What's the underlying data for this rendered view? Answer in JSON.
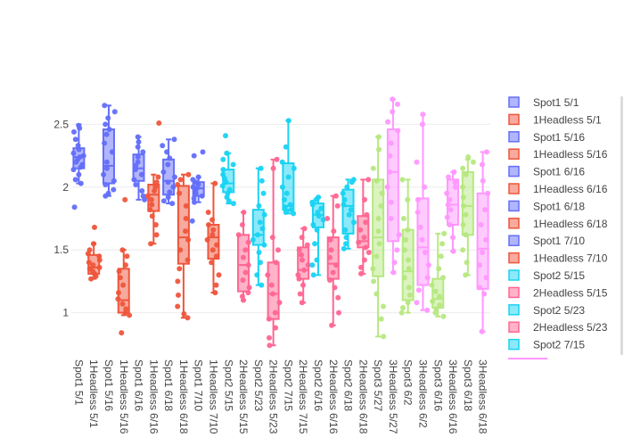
{
  "chart_data": {
    "type": "box",
    "y_ticks": [
      1,
      1.5,
      2,
      2.5
    ],
    "y_range": [
      0.72,
      2.78
    ],
    "y_tick_labels": [
      "1",
      "1.5",
      "2",
      "2.5"
    ],
    "grid": true,
    "legend_position": "right",
    "series": [
      {
        "name": "Spot1 5/1",
        "color": "#636efa",
        "q1": 2.15,
        "median": 2.24,
        "q3": 2.31,
        "min": 2.03,
        "max": 2.5,
        "points": [
          2.49,
          2.47,
          2.44,
          2.38,
          2.33,
          2.3,
          2.27,
          2.25,
          2.24,
          2.22,
          2.2,
          2.18,
          2.16,
          2.14,
          2.1,
          2.06,
          2.03,
          1.84
        ]
      },
      {
        "name": "1Headless 5/1",
        "color": "#ef553b",
        "q1": 1.31,
        "median": 1.36,
        "q3": 1.46,
        "min": 1.27,
        "max": 1.55,
        "points": [
          1.68,
          1.55,
          1.5,
          1.47,
          1.45,
          1.42,
          1.4,
          1.38,
          1.36,
          1.35,
          1.33,
          1.31,
          1.29,
          1.27
        ]
      },
      {
        "name": "Spot1 5/16",
        "color": "#636efa",
        "q1": 2.03,
        "median": 2.17,
        "q3": 2.46,
        "min": 1.93,
        "max": 2.65,
        "points": [
          2.65,
          2.6,
          2.55,
          2.5,
          2.46,
          2.42,
          2.35,
          2.28,
          2.2,
          2.15,
          2.1,
          2.05,
          2.02,
          1.98,
          1.95,
          1.93
        ]
      },
      {
        "name": "1Headless 5/16",
        "color": "#ef553b",
        "q1": 1.0,
        "median": 1.1,
        "q3": 1.35,
        "min": 0.98,
        "max": 1.5,
        "points": [
          1.9,
          1.5,
          1.45,
          1.38,
          1.33,
          1.28,
          1.22,
          1.16,
          1.11,
          1.07,
          1.03,
          1.0,
          0.98,
          0.84
        ]
      },
      {
        "name": "Spot1 6/16",
        "color": "#636efa",
        "q1": 2.05,
        "median": 2.15,
        "q3": 2.26,
        "min": 1.9,
        "max": 2.4,
        "points": [
          2.4,
          2.36,
          2.32,
          2.28,
          2.24,
          2.2,
          2.17,
          2.14,
          2.1,
          2.06,
          2.02,
          1.97,
          1.93,
          1.9
        ]
      },
      {
        "name": "1Headless 6/16",
        "color": "#ef553b",
        "q1": 1.81,
        "median": 1.94,
        "q3": 2.02,
        "min": 1.55,
        "max": 2.1,
        "points": [
          2.51,
          2.08,
          2.04,
          2.0,
          1.97,
          1.93,
          1.9,
          1.86,
          1.82,
          1.77,
          1.7,
          1.62,
          1.55
        ]
      },
      {
        "name": "Spot1 6/18",
        "color": "#636efa",
        "q1": 1.94,
        "median": 2.05,
        "q3": 2.22,
        "min": 1.87,
        "max": 2.38,
        "points": [
          2.38,
          2.33,
          2.28,
          2.23,
          2.18,
          2.12,
          2.08,
          2.04,
          2.0,
          1.96,
          1.92,
          1.89,
          1.87
        ]
      },
      {
        "name": "1Headless 6/18",
        "color": "#ef553b",
        "q1": 1.39,
        "median": 1.6,
        "q3": 2.01,
        "min": 0.96,
        "max": 2.1,
        "points": [
          2.1,
          2.06,
          2.02,
          1.95,
          1.85,
          1.75,
          1.65,
          1.58,
          1.5,
          1.42,
          1.35,
          1.25,
          1.14,
          1.05,
          0.99,
          0.96
        ]
      },
      {
        "name": "Spot1 7/10",
        "color": "#636efa",
        "q1": 1.93,
        "median": 1.99,
        "q3": 2.04,
        "min": 1.88,
        "max": 2.08,
        "points": [
          2.28,
          2.25,
          2.08,
          2.06,
          2.04,
          2.02,
          2.0,
          1.99,
          1.97,
          1.95,
          1.93,
          1.91,
          1.88,
          1.73
        ]
      },
      {
        "name": "1Headless 7/10",
        "color": "#ef553b",
        "q1": 1.43,
        "median": 1.6,
        "q3": 1.7,
        "min": 1.16,
        "max": 2.03,
        "points": [
          2.03,
          1.8,
          1.74,
          1.7,
          1.66,
          1.62,
          1.58,
          1.54,
          1.5,
          1.45,
          1.4,
          1.3,
          1.22,
          1.16
        ]
      },
      {
        "name": "Spot2 5/15",
        "color": "#19d3f3",
        "q1": 1.96,
        "median": 2.03,
        "q3": 2.14,
        "min": 1.87,
        "max": 2.27,
        "points": [
          2.41,
          2.27,
          2.22,
          2.18,
          2.14,
          2.1,
          2.07,
          2.04,
          2.01,
          1.98,
          1.95,
          1.92,
          1.89,
          1.87
        ]
      },
      {
        "name": "2Headless 5/15",
        "color": "#ff6692",
        "q1": 1.17,
        "median": 1.38,
        "q3": 1.62,
        "min": 1.1,
        "max": 1.8,
        "points": [
          1.8,
          1.7,
          1.62,
          1.56,
          1.5,
          1.44,
          1.38,
          1.32,
          1.26,
          1.2,
          1.16,
          1.13,
          1.1
        ]
      },
      {
        "name": "Spot2 5/23",
        "color": "#19d3f3",
        "q1": 1.54,
        "median": 1.62,
        "q3": 1.82,
        "min": 1.22,
        "max": 2.15,
        "points": [
          2.15,
          2.05,
          1.95,
          1.85,
          1.78,
          1.72,
          1.67,
          1.62,
          1.58,
          1.54,
          1.48,
          1.4,
          1.3,
          1.22
        ]
      },
      {
        "name": "2Headless 5/23",
        "color": "#ff6692",
        "q1": 0.95,
        "median": 1.15,
        "q3": 1.4,
        "min": 0.74,
        "max": 2.22,
        "points": [
          2.22,
          2.15,
          1.6,
          1.5,
          1.4,
          1.3,
          1.22,
          1.15,
          1.08,
          1.0,
          0.95,
          0.88,
          0.8,
          0.74
        ]
      },
      {
        "name": "Spot2 7/15",
        "color": "#19d3f3",
        "q1": 1.82,
        "median": 1.85,
        "q3": 2.19,
        "min": 1.79,
        "max": 2.53,
        "points": [
          2.53,
          2.32,
          2.2,
          2.15,
          2.08,
          2.0,
          1.95,
          1.9,
          1.86,
          1.84,
          1.82,
          1.8,
          1.79
        ]
      },
      {
        "name": "2Headless 7/15",
        "color": "#ff6692",
        "q1": 1.27,
        "median": 1.34,
        "q3": 1.52,
        "min": 1.08,
        "max": 1.67,
        "points": [
          1.67,
          1.6,
          1.54,
          1.5,
          1.46,
          1.42,
          1.38,
          1.34,
          1.3,
          1.27,
          1.22,
          1.15,
          1.08
        ]
      },
      {
        "name": "Spot2 6/16",
        "color": "#19d3f3",
        "q1": 1.68,
        "median": 1.78,
        "q3": 1.87,
        "min": 1.3,
        "max": 1.92,
        "points": [
          1.92,
          1.9,
          1.88,
          1.86,
          1.83,
          1.8,
          1.77,
          1.74,
          1.7,
          1.66,
          1.55,
          1.42,
          1.38,
          1.3
        ]
      },
      {
        "name": "2Headless 6/16",
        "color": "#ff6692",
        "q1": 1.27,
        "median": 1.39,
        "q3": 1.6,
        "min": 0.9,
        "max": 1.93,
        "points": [
          1.93,
          1.85,
          1.75,
          1.65,
          1.58,
          1.5,
          1.44,
          1.38,
          1.32,
          1.26,
          1.2,
          1.12,
          1.0,
          0.9
        ]
      },
      {
        "name": "Spot2 6/18",
        "color": "#19d3f3",
        "q1": 1.63,
        "median": 1.85,
        "q3": 1.98,
        "min": 1.51,
        "max": 2.06,
        "points": [
          2.06,
          2.04,
          2.0,
          1.95,
          1.9,
          1.86,
          1.82,
          1.78,
          1.72,
          1.66,
          1.6,
          1.55,
          1.51
        ]
      },
      {
        "name": "2Headless 6/18",
        "color": "#ff6692",
        "q1": 1.52,
        "median": 1.57,
        "q3": 1.77,
        "min": 1.31,
        "max": 2.06,
        "points": [
          2.06,
          1.9,
          1.78,
          1.72,
          1.66,
          1.6,
          1.56,
          1.52,
          1.48,
          1.42,
          1.36,
          1.31
        ]
      },
      {
        "name": "Spot3 5/27",
        "color": "#b6e880",
        "q1": 1.29,
        "median": 1.6,
        "q3": 2.06,
        "min": 0.81,
        "max": 2.4,
        "points": [
          2.4,
          2.3,
          2.15,
          2.05,
          1.95,
          1.85,
          1.75,
          1.65,
          1.55,
          1.45,
          1.35,
          1.25,
          1.15,
          1.05,
          0.95,
          0.81
        ]
      },
      {
        "name": "3Headless 5/27",
        "color": "#ff97ff",
        "q1": 1.57,
        "median": 2.12,
        "q3": 2.46,
        "min": 1.32,
        "max": 2.7,
        "points": [
          2.7,
          2.66,
          2.6,
          2.52,
          2.45,
          2.35,
          2.25,
          2.12,
          2.0,
          1.88,
          1.75,
          1.62,
          1.5,
          1.4,
          1.32
        ]
      },
      {
        "name": "Spot3 6/2",
        "color": "#b6e880",
        "q1": 1.1,
        "median": 1.33,
        "q3": 1.66,
        "min": 1.0,
        "max": 2.06,
        "points": [
          2.06,
          1.9,
          1.75,
          1.66,
          1.58,
          1.5,
          1.42,
          1.35,
          1.28,
          1.2,
          1.14,
          1.08,
          1.04,
          1.0
        ]
      },
      {
        "name": "3Headless 6/2",
        "color": "#ff97ff",
        "q1": 1.22,
        "median": 1.52,
        "q3": 1.91,
        "min": 1.02,
        "max": 2.58,
        "points": [
          2.58,
          2.5,
          2.2,
          2.0,
          1.9,
          1.8,
          1.68,
          1.58,
          1.48,
          1.38,
          1.28,
          1.18,
          1.08,
          1.02
        ]
      },
      {
        "name": "Spot3 6/16",
        "color": "#b6e880",
        "q1": 1.04,
        "median": 1.11,
        "q3": 1.27,
        "min": 0.97,
        "max": 1.63,
        "points": [
          1.63,
          1.55,
          1.45,
          1.35,
          1.28,
          1.22,
          1.17,
          1.13,
          1.09,
          1.06,
          1.03,
          1.0,
          0.97
        ]
      },
      {
        "name": "3Headless 6/16",
        "color": "#ff97ff",
        "q1": 1.7,
        "median": 1.86,
        "q3": 2.06,
        "min": 1.49,
        "max": 2.12,
        "points": [
          2.12,
          2.08,
          2.04,
          2.0,
          1.95,
          1.9,
          1.86,
          1.82,
          1.76,
          1.7,
          1.6,
          1.49
        ]
      },
      {
        "name": "Spot3 6/18",
        "color": "#b6e880",
        "q1": 1.62,
        "median": 1.85,
        "q3": 2.12,
        "min": 1.3,
        "max": 2.22,
        "points": [
          2.24,
          2.2,
          2.15,
          2.1,
          2.0,
          1.92,
          1.85,
          1.78,
          1.7,
          1.62,
          1.5,
          1.4,
          1.3
        ]
      },
      {
        "name": "3Headless 6/18",
        "color": "#ff97ff",
        "q1": 1.19,
        "median": 1.51,
        "q3": 1.95,
        "min": 0.85,
        "max": 2.28,
        "points": [
          2.28,
          2.18,
          2.05,
          1.95,
          1.82,
          1.7,
          1.58,
          1.48,
          1.38,
          1.28,
          1.2,
          1.15,
          0.85
        ]
      }
    ]
  },
  "legend": {
    "items": [
      "Spot1 5/1",
      "1Headless 5/1",
      "Spot1 5/16",
      "1Headless 5/16",
      "Spot1 6/16",
      "1Headless 6/16",
      "Spot1 6/18",
      "1Headless 6/18",
      "Spot1 7/10",
      "1Headless 7/10",
      "Spot2 5/15",
      "2Headless 5/15",
      "Spot2 5/23",
      "2Headless 5/23",
      "Spot2 7/15"
    ],
    "colors": [
      "#636efa",
      "#ef553b",
      "#636efa",
      "#ef553b",
      "#636efa",
      "#ef553b",
      "#636efa",
      "#ef553b",
      "#636efa",
      "#ef553b",
      "#19d3f3",
      "#ff6692",
      "#19d3f3",
      "#ff6692",
      "#19d3f3"
    ]
  }
}
